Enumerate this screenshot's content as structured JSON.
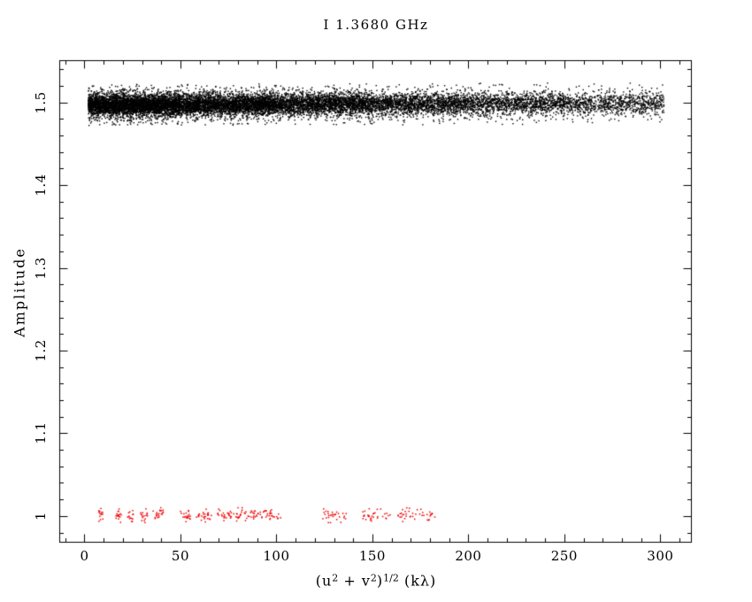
{
  "page": {
    "background": "#ffffff",
    "foreground": "#000000"
  },
  "chart_data": {
    "type": "scatter",
    "title": "I 1.3680 GHz",
    "ylabel": "Amplitude",
    "xlabel_plain": "(u^2 + v^2)^(1/2) (kλ)",
    "xlabel_parts": [
      {
        "text": "(u",
        "sup": false
      },
      {
        "text": "2",
        "sup": true
      },
      {
        "text": " + v",
        "sup": false
      },
      {
        "text": "2",
        "sup": true
      },
      {
        "text": ")",
        "sup": false
      },
      {
        "text": "1/2",
        "sup": true
      },
      {
        "text": " (kλ)",
        "sup": false
      }
    ],
    "xlim": [
      -12.9,
      316.2
    ],
    "ylim": [
      0.9683,
      1.5504
    ],
    "grid": false,
    "legend": null,
    "x_minor_step": 10,
    "y_minor_step": 0.02,
    "x_major_ticks": {
      "values": [
        0,
        50,
        100,
        150,
        200,
        250,
        300
      ],
      "labels": [
        "0",
        "50",
        "100",
        "150",
        "200",
        "250",
        "300"
      ]
    },
    "y_major_ticks": {
      "values": [
        1,
        1.1,
        1.2,
        1.3,
        1.4,
        1.5
      ],
      "labels": [
        "1",
        "1.1",
        "1.2",
        "1.3",
        "1.4",
        "1.5"
      ]
    },
    "seed": 1337,
    "series": [
      {
        "name": "visibility-amplitude-band",
        "description": "dense black band of visibility amplitudes near 1.5, 0-302 klambda",
        "color": "#000000",
        "marker": "dot",
        "marker_px": 1.4,
        "n_points": 14000,
        "amp_mean_at_0": 1.4967,
        "amp_slope_per_klambda": 7e-06,
        "amp_sigma": 0.0065,
        "amp_sigma_wide": 0.012,
        "wide_fraction": 0.15,
        "amp_clip": 0.025,
        "x_density_segments": [
          [
            2,
            50,
            0.3
          ],
          [
            50,
            100,
            0.24
          ],
          [
            100,
            150,
            0.18
          ],
          [
            150,
            200,
            0.12
          ],
          [
            200,
            250,
            0.09
          ],
          [
            250,
            302,
            0.07
          ]
        ]
      },
      {
        "name": "red-amplitude-clusters",
        "description": "red clustered points near amplitude 1.0, 7-185 klambda",
        "color": "#ee0000",
        "marker": "dot",
        "marker_px": 1.5,
        "amp_mean": 1.001,
        "amp_sigma": 0.004,
        "amp_clip": 0.009,
        "clusters": [
          [
            8.5,
            1.2,
            14
          ],
          [
            17.5,
            1.8,
            16
          ],
          [
            24,
            1.6,
            14
          ],
          [
            31,
            1.8,
            16
          ],
          [
            38.5,
            3.0,
            22
          ],
          [
            52.5,
            2.8,
            20
          ],
          [
            62.5,
            4.2,
            26
          ],
          [
            73,
            3.6,
            24
          ],
          [
            84,
            6.5,
            40
          ],
          [
            97,
            5.5,
            30
          ],
          [
            130,
            6.5,
            30
          ],
          [
            152,
            7.5,
            32
          ],
          [
            173,
            10,
            40
          ]
        ]
      }
    ]
  }
}
